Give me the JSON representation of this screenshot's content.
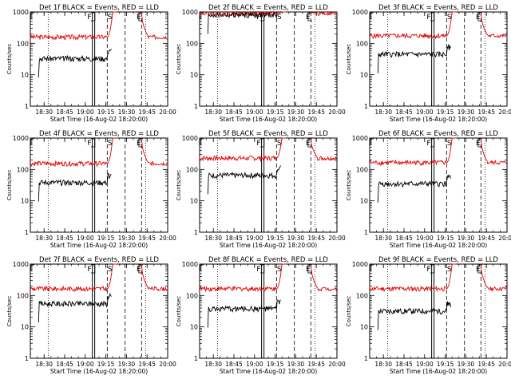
{
  "figure": {
    "background": "#ffffff",
    "black_color": "#000000",
    "red_color": "#e00000"
  },
  "chart_data": [
    {
      "type": "line",
      "title": "Det 1f BLACK = Events, RED = LLD",
      "xlabel": "Start Time (16-Aug-02 18:20:00)",
      "ylabel": "Counts/sec",
      "y_scale": "log",
      "ylim": [
        1,
        1000
      ],
      "yticks": [
        "1",
        "10",
        "100",
        "1000"
      ],
      "xticks": [
        "18:30",
        "18:45",
        "19:00",
        "19:15",
        "19:30",
        "19:45",
        "20:00"
      ],
      "x_range": [
        "18:20",
        "20:00"
      ],
      "markers": {
        "dotted": [
          "18:33",
          "19:44"
        ],
        "solid_double": "19:06",
        "dashed": [
          "19:16",
          "19:29",
          "19:41"
        ],
        "letters": [
          {
            "t": "19:03",
            "label": "F"
          },
          {
            "t": "19:18",
            "label": "S"
          },
          {
            "t": "19:39",
            "label": "E"
          }
        ],
        "box_right": "19:07",
        "box_left": "19:39"
      },
      "series": [
        {
          "name": "RED = LLD",
          "color": "#e00000",
          "baseline": 160,
          "flare_peak": 1000
        },
        {
          "name": "BLACK = Events",
          "color": "#000000",
          "start": "18:26",
          "base": 33,
          "ends": "19:19"
        }
      ]
    },
    {
      "type": "line",
      "title": "Det 2f BLACK = Events, RED = LLD",
      "xlabel": "Start Time (16-Aug-02 18:20:00)",
      "ylabel": "Counts/sec",
      "y_scale": "log",
      "ylim": [
        1,
        1000
      ],
      "yticks": [
        "1",
        "10",
        "100",
        "1000"
      ],
      "xticks": [
        "18:30",
        "18:45",
        "19:00",
        "19:15",
        "19:30",
        "19:45",
        "20:00"
      ],
      "x_range": [
        "18:20",
        "20:00"
      ],
      "markers": {
        "dotted": [
          "18:33",
          "19:44"
        ],
        "solid_double": "19:06",
        "dashed": [
          "19:16",
          "19:29",
          "19:41"
        ],
        "letters": [
          {
            "t": "19:03",
            "label": "F"
          },
          {
            "t": "19:18",
            "label": "S"
          },
          {
            "t": "19:39",
            "label": "E"
          }
        ],
        "box_right": "19:07",
        "box_left": "19:39"
      },
      "series": [
        {
          "name": "RED = LLD",
          "color": "#e00000",
          "baseline": 900,
          "flare_peak": 1000
        },
        {
          "name": "BLACK = Events",
          "color": "#000000",
          "start": "18:26",
          "base": 800,
          "ends": "19:19"
        }
      ]
    },
    {
      "type": "line",
      "title": "Det 3f BLACK = Events, RED = LLD",
      "xlabel": "Start Time (16-Aug-02 18:20:00)",
      "ylabel": "Counts/sec",
      "y_scale": "log",
      "ylim": [
        1,
        1000
      ],
      "yticks": [
        "1",
        "10",
        "100",
        "1000"
      ],
      "xticks": [
        "18:30",
        "18:45",
        "19:00",
        "19:15",
        "19:30",
        "19:45",
        "20:00"
      ],
      "x_range": [
        "18:20",
        "20:00"
      ],
      "markers": {
        "dotted": [
          "18:33",
          "19:44"
        ],
        "solid_double": "19:06",
        "dashed": [
          "19:16",
          "19:29",
          "19:41"
        ],
        "letters": [
          {
            "t": "19:03",
            "label": "F"
          },
          {
            "t": "19:18",
            "label": "S"
          },
          {
            "t": "19:39",
            "label": "E"
          }
        ],
        "box_right": "19:07",
        "box_left": "19:39"
      },
      "series": [
        {
          "name": "RED = LLD",
          "color": "#e00000",
          "baseline": 175,
          "flare_peak": 1000
        },
        {
          "name": "BLACK = Events",
          "color": "#000000",
          "start": "18:26",
          "base": 45,
          "ends": "19:19"
        }
      ]
    },
    {
      "type": "line",
      "title": "Det 4f BLACK = Events, RED = LLD",
      "xlabel": "Start Time (16-Aug-02 18:20:00)",
      "ylabel": "Counts/sec",
      "y_scale": "log",
      "ylim": [
        1,
        1000
      ],
      "yticks": [
        "1",
        "10",
        "100",
        "1000"
      ],
      "xticks": [
        "18:30",
        "18:45",
        "19:00",
        "19:15",
        "19:30",
        "19:45",
        "20:00"
      ],
      "x_range": [
        "18:20",
        "20:00"
      ],
      "markers": {
        "dotted": [
          "18:33",
          "19:44"
        ],
        "solid_double": "19:06",
        "dashed": [
          "19:16",
          "19:29",
          "19:41"
        ],
        "letters": [
          {
            "t": "19:03",
            "label": "F"
          },
          {
            "t": "19:18",
            "label": "S"
          },
          {
            "t": "19:39",
            "label": "E"
          }
        ],
        "box_right": "19:07",
        "box_left": "19:39"
      },
      "series": [
        {
          "name": "RED = LLD",
          "color": "#e00000",
          "baseline": 155,
          "flare_peak": 1000
        },
        {
          "name": "BLACK = Events",
          "color": "#000000",
          "start": "18:26",
          "base": 38,
          "ends": "19:19"
        }
      ]
    },
    {
      "type": "line",
      "title": "Det 5f BLACK = Events, RED = LLD",
      "xlabel": "Start Time (16-Aug-02 18:20:00)",
      "ylabel": "Counts/sec",
      "y_scale": "log",
      "ylim": [
        1,
        1000
      ],
      "yticks": [
        "1",
        "10",
        "100",
        "1000"
      ],
      "xticks": [
        "18:30",
        "18:45",
        "19:00",
        "19:15",
        "19:30",
        "19:45",
        "20:00"
      ],
      "x_range": [
        "18:20",
        "20:00"
      ],
      "markers": {
        "dotted": [
          "18:33",
          "19:44"
        ],
        "solid_double": "19:06",
        "dashed": [
          "19:16",
          "19:29",
          "19:41"
        ],
        "letters": [
          {
            "t": "19:03",
            "label": "F"
          },
          {
            "t": "19:18",
            "label": "S"
          },
          {
            "t": "19:39",
            "label": "E"
          }
        ],
        "box_right": "19:07",
        "box_left": "19:39"
      },
      "series": [
        {
          "name": "RED = LLD",
          "color": "#e00000",
          "baseline": 230,
          "flare_peak": 1000
        },
        {
          "name": "BLACK = Events",
          "color": "#000000",
          "start": "18:26",
          "base": 65,
          "ends": "19:19"
        }
      ]
    },
    {
      "type": "line",
      "title": "Det 6f BLACK = Events, RED = LLD",
      "xlabel": "Start Time (16-Aug-02 18:20:00)",
      "ylabel": "Counts/sec",
      "y_scale": "log",
      "ylim": [
        1,
        1000
      ],
      "yticks": [
        "1",
        "10",
        "100",
        "1000"
      ],
      "xticks": [
        "18:30",
        "18:45",
        "19:00",
        "19:15",
        "19:30",
        "19:45",
        "20:00"
      ],
      "x_range": [
        "18:20",
        "20:00"
      ],
      "markers": {
        "dotted": [
          "18:33",
          "19:44"
        ],
        "solid_double": "19:06",
        "dashed": [
          "19:16",
          "19:29",
          "19:41"
        ],
        "letters": [
          {
            "t": "19:03",
            "label": "F"
          },
          {
            "t": "19:18",
            "label": "S"
          },
          {
            "t": "19:39",
            "label": "E"
          }
        ],
        "box_right": "19:07",
        "box_left": "19:39"
      },
      "series": [
        {
          "name": "RED = LLD",
          "color": "#e00000",
          "baseline": 165,
          "flare_peak": 1000
        },
        {
          "name": "BLACK = Events",
          "color": "#000000",
          "start": "18:26",
          "base": 35,
          "ends": "19:19"
        }
      ]
    },
    {
      "type": "line",
      "title": "Det 7f BLACK = Events, RED = LLD",
      "xlabel": "Start Time (16-Aug-02 18:20:00)",
      "ylabel": "Counts/sec",
      "y_scale": "log",
      "ylim": [
        1,
        1000
      ],
      "yticks": [
        "1",
        "10",
        "100",
        "1000"
      ],
      "xticks": [
        "18:30",
        "18:45",
        "19:00",
        "19:15",
        "19:30",
        "19:45",
        "20:00"
      ],
      "x_range": [
        "18:20",
        "20:00"
      ],
      "markers": {
        "dotted": [
          "18:33",
          "19:44"
        ],
        "solid_double": "19:06",
        "dashed": [
          "19:16",
          "19:29",
          "19:41"
        ],
        "letters": [
          {
            "t": "19:03",
            "label": "F"
          },
          {
            "t": "19:18",
            "label": "S"
          },
          {
            "t": "19:39",
            "label": "E"
          }
        ],
        "box_right": "19:07",
        "box_left": "19:39"
      },
      "series": [
        {
          "name": "RED = LLD",
          "color": "#e00000",
          "baseline": 165,
          "flare_peak": 1000
        },
        {
          "name": "BLACK = Events",
          "color": "#000000",
          "start": "18:26",
          "base": 55,
          "ends": "19:19"
        }
      ]
    },
    {
      "type": "line",
      "title": "Det 8f BLACK = Events, RED = LLD",
      "xlabel": "Start Time (16-Aug-02 18:20:00)",
      "ylabel": "Counts/sec",
      "y_scale": "log",
      "ylim": [
        1,
        1000
      ],
      "yticks": [
        "1",
        "10",
        "100",
        "1000"
      ],
      "xticks": [
        "18:30",
        "18:45",
        "19:00",
        "19:15",
        "19:30",
        "19:45",
        "20:00"
      ],
      "x_range": [
        "18:20",
        "20:00"
      ],
      "markers": {
        "dotted": [
          "18:33",
          "19:44"
        ],
        "solid_double": "19:06",
        "dashed": [
          "19:16",
          "19:29",
          "19:41"
        ],
        "letters": [
          {
            "t": "19:03",
            "label": "F"
          },
          {
            "t": "19:18",
            "label": "S"
          },
          {
            "t": "19:39",
            "label": "E"
          }
        ],
        "box_right": "19:07",
        "box_left": "19:39"
      },
      "series": [
        {
          "name": "RED = LLD",
          "color": "#e00000",
          "baseline": 165,
          "flare_peak": 1000
        },
        {
          "name": "BLACK = Events",
          "color": "#000000",
          "start": "18:26",
          "base": 38,
          "ends": "19:19"
        }
      ]
    },
    {
      "type": "line",
      "title": "Det 9f BLACK = Events, RED = LLD",
      "xlabel": "Start Time (16-Aug-02 18:20:00)",
      "ylabel": "Counts/sec",
      "y_scale": "log",
      "ylim": [
        1,
        1000
      ],
      "yticks": [
        "1",
        "10",
        "100",
        "1000"
      ],
      "xticks": [
        "18:30",
        "18:45",
        "19:00",
        "19:15",
        "19:30",
        "19:45",
        "20:00"
      ],
      "x_range": [
        "18:20",
        "20:00"
      ],
      "markers": {
        "dotted": [
          "18:33",
          "19:44"
        ],
        "solid_double": "19:06",
        "dashed": [
          "19:16",
          "19:29",
          "19:41"
        ],
        "letters": [
          {
            "t": "19:03",
            "label": "F"
          },
          {
            "t": "19:18",
            "label": "S"
          },
          {
            "t": "19:39",
            "label": "E"
          }
        ],
        "box_right": "19:07",
        "box_left": "19:39"
      },
      "series": [
        {
          "name": "RED = LLD",
          "color": "#e00000",
          "baseline": 165,
          "flare_peak": 1000
        },
        {
          "name": "BLACK = Events",
          "color": "#000000",
          "start": "18:26",
          "base": 32,
          "ends": "19:19"
        }
      ]
    }
  ]
}
